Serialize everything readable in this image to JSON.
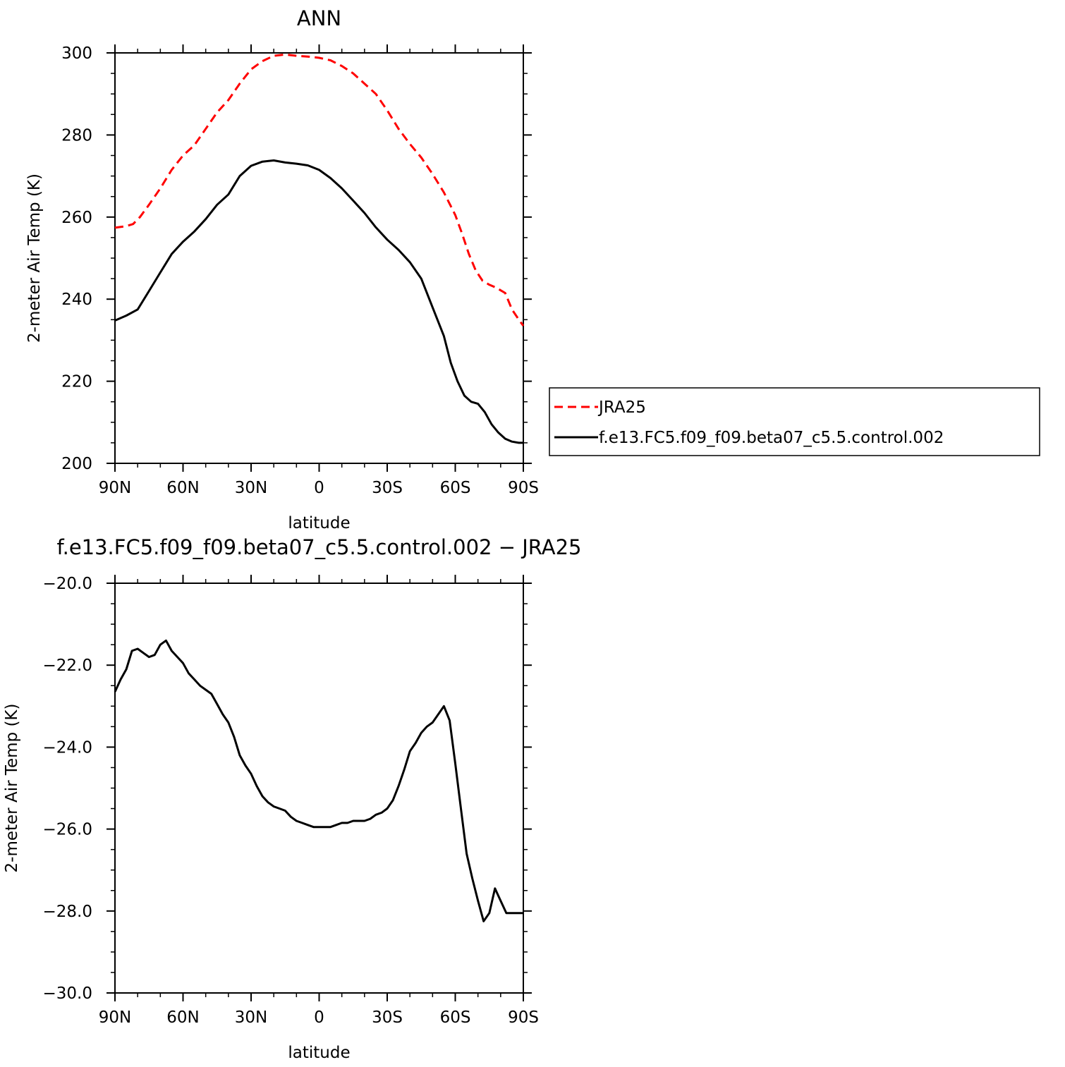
{
  "chart_data": [
    {
      "type": "line",
      "title": "ANN",
      "xlabel": "latitude",
      "ylabel": "2-meter Air Temp (K)",
      "xlim": [
        90,
        -90
      ],
      "ylim": [
        200,
        300
      ],
      "xticks": [
        90,
        60,
        30,
        0,
        -30,
        -60,
        -90
      ],
      "xtick_labels": [
        "90N",
        "60N",
        "30N",
        "0",
        "30S",
        "60S",
        "90S"
      ],
      "yticks": [
        200,
        220,
        240,
        260,
        280,
        300
      ],
      "ytick_labels": [
        "200",
        "220",
        "240",
        "260",
        "280",
        "300"
      ],
      "legend_position": "right",
      "series": [
        {
          "name": "JRA25",
          "color": "#ff0000",
          "dash": "dashed",
          "x": [
            90,
            85,
            82,
            79,
            75,
            70,
            65,
            60,
            55,
            50,
            45,
            40,
            35,
            30,
            25,
            20,
            15,
            10,
            5,
            0,
            -5,
            -10,
            -15,
            -20,
            -25,
            -30,
            -35,
            -40,
            -45,
            -50,
            -55,
            -60,
            -63,
            -66,
            -69,
            -72,
            -75,
            -78,
            -82,
            -85,
            -88,
            -90
          ],
          "y": [
            257.4,
            257.8,
            258.3,
            260.0,
            263.0,
            267.0,
            271.5,
            275.0,
            277.5,
            281.5,
            285.5,
            288.5,
            292.5,
            296.0,
            298.0,
            299.3,
            299.6,
            299.3,
            299.1,
            298.8,
            298.2,
            296.8,
            295.0,
            292.5,
            290.0,
            286.0,
            281.5,
            277.8,
            274.5,
            270.5,
            266.0,
            260.5,
            256.0,
            251.0,
            247.0,
            244.5,
            243.5,
            242.8,
            241.5,
            237.5,
            235.0,
            233.5
          ]
        },
        {
          "name": "f.e13.FC5.f09_f09.beta07_c5.5.control.002",
          "color": "#000000",
          "dash": "solid",
          "x": [
            90,
            85,
            80,
            75,
            70,
            65,
            60,
            55,
            50,
            45,
            40,
            35,
            30,
            25,
            20,
            15,
            10,
            5,
            0,
            -5,
            -10,
            -15,
            -20,
            -25,
            -30,
            -35,
            -40,
            -45,
            -50,
            -55,
            -58,
            -61,
            -64,
            -67,
            -70,
            -73,
            -76,
            -79,
            -82,
            -85,
            -88,
            -90
          ],
          "y": [
            234.8,
            236.0,
            237.5,
            242.0,
            246.5,
            251.0,
            254.0,
            256.5,
            259.5,
            263.0,
            265.5,
            270.0,
            272.5,
            273.5,
            273.8,
            273.3,
            273.0,
            272.6,
            271.5,
            269.5,
            267.0,
            264.0,
            261.0,
            257.5,
            254.5,
            252.0,
            249.0,
            245.0,
            238.0,
            231.0,
            224.5,
            220.0,
            216.5,
            215.0,
            214.5,
            212.5,
            209.5,
            207.5,
            206.0,
            205.3,
            205.0,
            205.0
          ]
        }
      ]
    },
    {
      "type": "line",
      "title": "f.e13.FC5.f09_f09.beta07_c5.5.control.002 − JRA25",
      "xlabel": "latitude",
      "ylabel": "2-meter Air Temp (K)",
      "xlim": [
        90,
        -90
      ],
      "ylim": [
        -30,
        -20
      ],
      "xticks": [
        90,
        60,
        30,
        0,
        -30,
        -60,
        -90
      ],
      "xtick_labels": [
        "90N",
        "60N",
        "30N",
        "0",
        "30S",
        "60S",
        "90S"
      ],
      "yticks": [
        -30,
        -28,
        -26,
        -24,
        -22,
        -20
      ],
      "ytick_labels": [
        "−30.0",
        "−28.0",
        "−26.0",
        "−24.0",
        "−22.0",
        "−20.0"
      ],
      "series": [
        {
          "color": "#000000",
          "dash": "solid",
          "x": [
            90,
            87.5,
            85,
            82.5,
            80,
            77.5,
            75,
            72.5,
            70,
            67.5,
            65,
            62.5,
            60,
            57.5,
            55,
            52.5,
            50,
            47.5,
            45,
            42.5,
            40,
            37.5,
            35,
            32.5,
            30,
            27.5,
            25,
            22.5,
            20,
            17.5,
            15,
            12.5,
            10,
            7.5,
            5,
            2.5,
            0,
            -2.5,
            -5,
            -7.5,
            -10,
            -12.5,
            -15,
            -17.5,
            -20,
            -22.5,
            -25,
            -27.5,
            -30,
            -32.5,
            -35,
            -37.5,
            -40,
            -42.5,
            -45,
            -47.5,
            -50,
            -52.5,
            -55,
            -57.5,
            -60,
            -62.5,
            -65,
            -67.5,
            -70,
            -72.5,
            -75,
            -77.5,
            -80,
            -82.5,
            -85,
            -87.5,
            -90
          ],
          "y": [
            -22.65,
            -22.35,
            -22.1,
            -21.65,
            -21.6,
            -21.7,
            -21.8,
            -21.75,
            -21.5,
            -21.4,
            -21.65,
            -21.8,
            -21.95,
            -22.2,
            -22.35,
            -22.5,
            -22.6,
            -22.7,
            -22.95,
            -23.2,
            -23.4,
            -23.75,
            -24.2,
            -24.45,
            -24.65,
            -24.95,
            -25.2,
            -25.35,
            -25.45,
            -25.5,
            -25.55,
            -25.7,
            -25.8,
            -25.85,
            -25.9,
            -25.95,
            -25.95,
            -25.95,
            -25.95,
            -25.9,
            -25.85,
            -25.85,
            -25.8,
            -25.8,
            -25.8,
            -25.75,
            -25.65,
            -25.6,
            -25.5,
            -25.3,
            -24.95,
            -24.55,
            -24.1,
            -23.9,
            -23.65,
            -23.5,
            -23.4,
            -23.2,
            -23.0,
            -23.35,
            -24.4,
            -25.5,
            -26.6,
            -27.2,
            -27.75,
            -28.25,
            -28.05,
            -27.45,
            -27.75,
            -28.05,
            -28.05,
            -28.05,
            -28.05
          ]
        }
      ]
    }
  ]
}
